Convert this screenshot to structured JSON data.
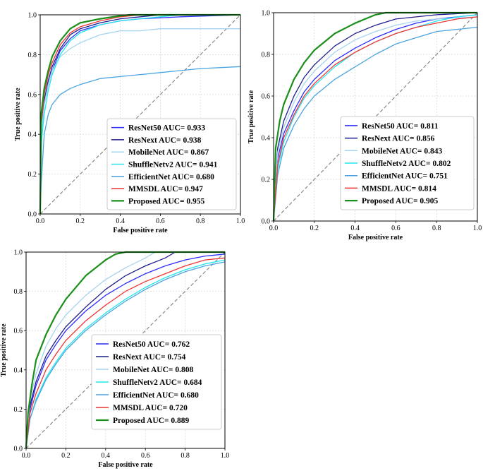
{
  "chart_data": [
    {
      "type": "line",
      "title": "",
      "xlabel": "False positive rate",
      "ylabel": "True positive rate",
      "xlim": [
        0,
        1.0
      ],
      "ylim": [
        0,
        1.0
      ],
      "xticks": [
        "0.0",
        "0.2",
        "0.4",
        "0.6",
        "0.8",
        "1.0"
      ],
      "yticks": [
        "0.0",
        "0.2",
        "0.4",
        "0.6",
        "0.8",
        "1.0"
      ],
      "grid": true,
      "legend_position": "lower-right",
      "diagonal": true,
      "series": [
        {
          "name": "ResNet50 AUC= 0.933",
          "color": "#2b2bff",
          "x": [
            0,
            0.005,
            0.02,
            0.04,
            0.06,
            0.1,
            0.15,
            0.2,
            0.3,
            0.4,
            0.5,
            0.7,
            1.0
          ],
          "y": [
            0,
            0.4,
            0.55,
            0.65,
            0.72,
            0.82,
            0.88,
            0.92,
            0.95,
            0.97,
            0.98,
            0.99,
            1.0
          ]
        },
        {
          "name": "ResNext AUC= 0.938",
          "color": "#1c1c8c",
          "x": [
            0,
            0.005,
            0.02,
            0.04,
            0.06,
            0.1,
            0.15,
            0.2,
            0.3,
            0.4,
            0.5,
            0.6,
            1.0
          ],
          "y": [
            0,
            0.42,
            0.57,
            0.67,
            0.74,
            0.83,
            0.9,
            0.93,
            0.96,
            0.98,
            0.99,
            1.0,
            1.0
          ]
        },
        {
          "name": "MobileNet AUC= 0.867",
          "color": "#a6d3f0",
          "x": [
            0,
            0.01,
            0.02,
            0.04,
            0.06,
            0.1,
            0.15,
            0.2,
            0.3,
            0.4,
            0.5,
            0.6,
            0.8,
            1.0
          ],
          "y": [
            0,
            0.45,
            0.55,
            0.65,
            0.72,
            0.79,
            0.83,
            0.86,
            0.9,
            0.92,
            0.92,
            0.93,
            0.93,
            0.93
          ]
        },
        {
          "name": "ShuffleNetv2 AUC= 0.941",
          "color": "#22e6ee",
          "x": [
            0,
            0.005,
            0.02,
            0.04,
            0.06,
            0.1,
            0.15,
            0.2,
            0.3,
            0.4,
            0.5,
            0.6,
            0.7,
            1.0
          ],
          "y": [
            0,
            0.35,
            0.5,
            0.62,
            0.7,
            0.8,
            0.87,
            0.91,
            0.95,
            0.97,
            0.98,
            0.99,
            1.0,
            1.0
          ]
        },
        {
          "name": "EfficientNet AUC= 0.680",
          "color": "#4aa3df",
          "x": [
            0,
            0.005,
            0.02,
            0.04,
            0.06,
            0.1,
            0.15,
            0.2,
            0.3,
            0.4,
            0.5,
            0.6,
            0.8,
            1.0
          ],
          "y": [
            0,
            0.15,
            0.4,
            0.5,
            0.55,
            0.6,
            0.63,
            0.65,
            0.68,
            0.69,
            0.7,
            0.71,
            0.73,
            0.74
          ]
        },
        {
          "name": "MMSDL AUC= 0.947",
          "color": "#ee3333",
          "x": [
            0,
            0.005,
            0.02,
            0.04,
            0.06,
            0.1,
            0.15,
            0.2,
            0.3,
            0.4,
            0.5,
            0.6,
            1.0
          ],
          "y": [
            0,
            0.45,
            0.6,
            0.7,
            0.76,
            0.85,
            0.91,
            0.94,
            0.97,
            0.99,
            1.0,
            1.0,
            1.0
          ]
        },
        {
          "name": "Proposed AUC= 0.955",
          "color": "#1a8f1a",
          "x": [
            0,
            0.005,
            0.02,
            0.04,
            0.06,
            0.1,
            0.15,
            0.2,
            0.3,
            0.4,
            0.45,
            1.0
          ],
          "y": [
            0,
            0.5,
            0.63,
            0.72,
            0.79,
            0.87,
            0.93,
            0.96,
            0.98,
            0.995,
            1.0,
            1.0
          ]
        }
      ]
    },
    {
      "type": "line",
      "title": "",
      "xlabel": "False positive rate",
      "ylabel": "True positive rate",
      "xlim": [
        0,
        1.0
      ],
      "ylim": [
        0,
        1.0
      ],
      "xticks": [
        "0.0",
        "0.2",
        "0.4",
        "0.6",
        "0.8",
        "1.0"
      ],
      "yticks": [
        "0.0",
        "0.2",
        "0.4",
        "0.6",
        "0.8",
        "1.0"
      ],
      "grid": true,
      "legend_position": "lower-right",
      "diagonal": true,
      "series": [
        {
          "name": "ResNet50 AUC= 0.811",
          "color": "#2b2bff",
          "x": [
            0,
            0.02,
            0.05,
            0.1,
            0.15,
            0.2,
            0.3,
            0.4,
            0.5,
            0.6,
            0.7,
            0.8,
            0.9,
            1.0
          ],
          "y": [
            0,
            0.3,
            0.42,
            0.53,
            0.62,
            0.68,
            0.77,
            0.83,
            0.88,
            0.92,
            0.95,
            0.97,
            0.98,
            0.99
          ]
        },
        {
          "name": "ResNext AUC= 0.856",
          "color": "#1c1c8c",
          "x": [
            0,
            0.02,
            0.05,
            0.1,
            0.15,
            0.2,
            0.3,
            0.4,
            0.5,
            0.6,
            0.7,
            0.8,
            1.0
          ],
          "y": [
            0,
            0.35,
            0.48,
            0.6,
            0.69,
            0.75,
            0.84,
            0.9,
            0.94,
            0.97,
            0.98,
            0.99,
            1.0
          ]
        },
        {
          "name": "MobileNet AUC= 0.843",
          "color": "#a6d3f0",
          "x": [
            0,
            0.02,
            0.05,
            0.1,
            0.15,
            0.2,
            0.3,
            0.4,
            0.5,
            0.6,
            0.7,
            0.8,
            1.0
          ],
          "y": [
            0,
            0.33,
            0.45,
            0.57,
            0.66,
            0.72,
            0.81,
            0.87,
            0.91,
            0.94,
            0.96,
            0.97,
            0.98
          ]
        },
        {
          "name": "ShuffleNetv2 AUC= 0.802",
          "color": "#22e6ee",
          "x": [
            0,
            0.02,
            0.05,
            0.1,
            0.15,
            0.2,
            0.3,
            0.4,
            0.5,
            0.6,
            0.7,
            0.8,
            0.9,
            1.0
          ],
          "y": [
            0,
            0.25,
            0.38,
            0.5,
            0.59,
            0.65,
            0.74,
            0.81,
            0.86,
            0.9,
            0.93,
            0.96,
            0.98,
            0.99
          ]
        },
        {
          "name": "EfficientNet AUC= 0.751",
          "color": "#4aa3df",
          "x": [
            0,
            0.02,
            0.05,
            0.1,
            0.15,
            0.2,
            0.3,
            0.4,
            0.5,
            0.6,
            0.7,
            0.8,
            0.9,
            1.0
          ],
          "y": [
            0,
            0.22,
            0.35,
            0.46,
            0.54,
            0.6,
            0.68,
            0.74,
            0.8,
            0.85,
            0.88,
            0.91,
            0.92,
            0.93
          ]
        },
        {
          "name": "MMSDL AUC= 0.814",
          "color": "#ee3333",
          "x": [
            0,
            0.02,
            0.05,
            0.1,
            0.15,
            0.2,
            0.3,
            0.4,
            0.5,
            0.6,
            0.7,
            0.8,
            0.9,
            1.0
          ],
          "y": [
            0,
            0.27,
            0.4,
            0.51,
            0.6,
            0.66,
            0.75,
            0.81,
            0.86,
            0.9,
            0.93,
            0.95,
            0.97,
            0.98
          ]
        },
        {
          "name": "Proposed AUC= 0.905",
          "color": "#1a8f1a",
          "x": [
            0,
            0.01,
            0.03,
            0.05,
            0.1,
            0.15,
            0.2,
            0.3,
            0.4,
            0.5,
            0.55,
            1.0
          ],
          "y": [
            0,
            0.35,
            0.48,
            0.56,
            0.68,
            0.76,
            0.82,
            0.9,
            0.95,
            0.99,
            1.0,
            1.0
          ]
        }
      ]
    },
    {
      "type": "line",
      "title": "",
      "xlabel": "False positive rate",
      "ylabel": "True positive rate",
      "xlim": [
        0,
        1.0
      ],
      "ylim": [
        0,
        1.0
      ],
      "xticks": [
        "0.0",
        "0.2",
        "0.4",
        "0.6",
        "0.8",
        "1.0"
      ],
      "yticks": [
        "0.0",
        "0.2",
        "0.4",
        "0.6",
        "0.8",
        "1.0"
      ],
      "grid": true,
      "legend_position": "lower-right",
      "diagonal": true,
      "series": [
        {
          "name": "ResNet50 AUC= 0.762",
          "color": "#2b2bff",
          "x": [
            0,
            0.02,
            0.05,
            0.1,
            0.15,
            0.2,
            0.3,
            0.4,
            0.5,
            0.6,
            0.7,
            0.8,
            0.9,
            1.0
          ],
          "y": [
            0,
            0.2,
            0.32,
            0.45,
            0.53,
            0.6,
            0.7,
            0.78,
            0.84,
            0.89,
            0.93,
            0.96,
            0.98,
            0.99
          ]
        },
        {
          "name": "ResNext AUC= 0.754",
          "color": "#1c1c8c",
          "x": [
            0,
            0.02,
            0.05,
            0.1,
            0.15,
            0.2,
            0.3,
            0.4,
            0.5,
            0.6,
            0.7,
            0.75,
            1.0
          ],
          "y": [
            0,
            0.22,
            0.34,
            0.47,
            0.55,
            0.62,
            0.72,
            0.81,
            0.88,
            0.93,
            0.97,
            1.0,
            1.0
          ]
        },
        {
          "name": "MobileNet AUC= 0.808",
          "color": "#a6d3f0",
          "x": [
            0,
            0.02,
            0.05,
            0.1,
            0.15,
            0.2,
            0.3,
            0.4,
            0.5,
            0.6,
            0.65,
            1.0
          ],
          "y": [
            0,
            0.25,
            0.38,
            0.52,
            0.61,
            0.68,
            0.78,
            0.86,
            0.92,
            0.97,
            1.0,
            1.0
          ]
        },
        {
          "name": "ShuffleNetv2 AUC= 0.684",
          "color": "#22e6ee",
          "x": [
            0,
            0.02,
            0.05,
            0.1,
            0.15,
            0.2,
            0.3,
            0.4,
            0.5,
            0.6,
            0.7,
            0.8,
            0.9,
            1.0
          ],
          "y": [
            0,
            0.15,
            0.25,
            0.36,
            0.44,
            0.51,
            0.61,
            0.69,
            0.76,
            0.82,
            0.87,
            0.91,
            0.94,
            0.96
          ]
        },
        {
          "name": "EfficientNet AUC= 0.680",
          "color": "#4aa3df",
          "x": [
            0,
            0.02,
            0.05,
            0.1,
            0.15,
            0.2,
            0.3,
            0.4,
            0.5,
            0.6,
            0.7,
            0.8,
            0.9,
            1.0
          ],
          "y": [
            0,
            0.15,
            0.24,
            0.35,
            0.43,
            0.5,
            0.6,
            0.68,
            0.75,
            0.81,
            0.86,
            0.9,
            0.93,
            0.95
          ]
        },
        {
          "name": "MMSDL AUC= 0.720",
          "color": "#ee3333",
          "x": [
            0,
            0.02,
            0.05,
            0.1,
            0.15,
            0.2,
            0.3,
            0.4,
            0.5,
            0.6,
            0.7,
            0.8,
            0.9,
            1.0
          ],
          "y": [
            0,
            0.18,
            0.28,
            0.4,
            0.48,
            0.55,
            0.65,
            0.73,
            0.8,
            0.85,
            0.89,
            0.93,
            0.96,
            0.97
          ]
        },
        {
          "name": "Proposed AUC= 0.889",
          "color": "#1a8f1a",
          "x": [
            0,
            0.01,
            0.03,
            0.05,
            0.1,
            0.15,
            0.2,
            0.3,
            0.4,
            0.45,
            0.5,
            1.0
          ],
          "y": [
            0,
            0.18,
            0.33,
            0.45,
            0.58,
            0.68,
            0.76,
            0.88,
            0.96,
            0.99,
            1.0,
            1.0
          ]
        }
      ]
    }
  ]
}
